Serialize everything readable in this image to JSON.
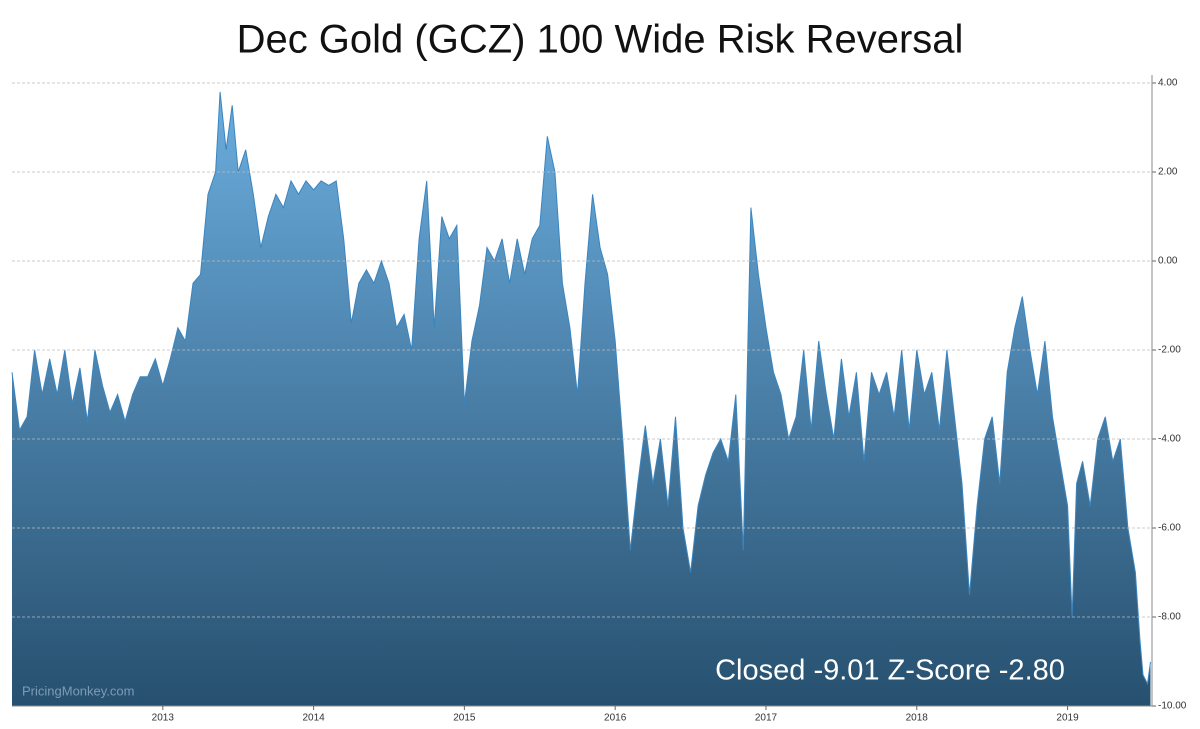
{
  "chart_data": {
    "type": "area",
    "title": "Dec Gold (GCZ) 100 Wide Risk Reversal",
    "annotation": "Closed -9.01 Z-Score -2.80",
    "watermark": "PricingMonkey.com",
    "x": [
      2012.0,
      2012.05,
      2012.1,
      2012.15,
      2012.2,
      2012.25,
      2012.3,
      2012.35,
      2012.4,
      2012.45,
      2012.5,
      2012.55,
      2012.6,
      2012.65,
      2012.7,
      2012.75,
      2012.8,
      2012.85,
      2012.9,
      2012.95,
      2013.0,
      2013.05,
      2013.1,
      2013.15,
      2013.2,
      2013.25,
      2013.3,
      2013.35,
      2013.38,
      2013.42,
      2013.46,
      2013.5,
      2013.55,
      2013.6,
      2013.65,
      2013.7,
      2013.75,
      2013.8,
      2013.85,
      2013.9,
      2013.95,
      2014.0,
      2014.05,
      2014.1,
      2014.15,
      2014.2,
      2014.25,
      2014.3,
      2014.35,
      2014.4,
      2014.45,
      2014.5,
      2014.55,
      2014.6,
      2014.65,
      2014.7,
      2014.75,
      2014.8,
      2014.85,
      2014.9,
      2014.95,
      2015.0,
      2015.05,
      2015.1,
      2015.15,
      2015.2,
      2015.25,
      2015.3,
      2015.35,
      2015.4,
      2015.45,
      2015.5,
      2015.55,
      2015.6,
      2015.65,
      2015.7,
      2015.75,
      2015.8,
      2015.85,
      2015.9,
      2015.95,
      2016.0,
      2016.05,
      2016.1,
      2016.15,
      2016.2,
      2016.25,
      2016.3,
      2016.35,
      2016.4,
      2016.45,
      2016.5,
      2016.55,
      2016.6,
      2016.65,
      2016.7,
      2016.75,
      2016.8,
      2016.85,
      2016.9,
      2016.95,
      2017.0,
      2017.05,
      2017.1,
      2017.15,
      2017.2,
      2017.25,
      2017.3,
      2017.35,
      2017.4,
      2017.45,
      2017.5,
      2017.55,
      2017.6,
      2017.65,
      2017.7,
      2017.75,
      2017.8,
      2017.85,
      2017.9,
      2017.95,
      2018.0,
      2018.05,
      2018.1,
      2018.15,
      2018.2,
      2018.25,
      2018.3,
      2018.35,
      2018.4,
      2018.45,
      2018.5,
      2018.55,
      2018.6,
      2018.65,
      2018.7,
      2018.75,
      2018.8,
      2018.85,
      2018.9,
      2018.95,
      2019.0,
      2019.03,
      2019.06,
      2019.1,
      2019.15,
      2019.2,
      2019.25,
      2019.3,
      2019.35,
      2019.4,
      2019.45,
      2019.48,
      2019.5,
      2019.53,
      2019.55
    ],
    "values": [
      -2.5,
      -3.8,
      -3.5,
      -2.0,
      -3.0,
      -2.2,
      -3.0,
      -2.0,
      -3.2,
      -2.4,
      -3.6,
      -2.0,
      -2.8,
      -3.4,
      -3.0,
      -3.6,
      -3.0,
      -2.6,
      -2.6,
      -2.2,
      -2.8,
      -2.2,
      -1.5,
      -1.8,
      -0.5,
      -0.3,
      1.5,
      2.0,
      3.8,
      2.5,
      3.5,
      2.0,
      2.5,
      1.5,
      0.3,
      1.0,
      1.5,
      1.2,
      1.8,
      1.5,
      1.8,
      1.6,
      1.8,
      1.7,
      1.8,
      0.5,
      -1.4,
      -0.5,
      -0.2,
      -0.5,
      0.0,
      -0.5,
      -1.5,
      -1.2,
      -2.0,
      0.5,
      1.8,
      -1.5,
      1.0,
      0.5,
      0.8,
      -3.2,
      -1.8,
      -1.0,
      0.3,
      0.0,
      0.5,
      -0.5,
      0.5,
      -0.3,
      0.5,
      0.8,
      2.8,
      2.0,
      -0.5,
      -1.5,
      -3.0,
      -0.5,
      1.5,
      0.3,
      -0.3,
      -1.8,
      -4.0,
      -6.5,
      -5.0,
      -3.7,
      -5.0,
      -4.0,
      -5.5,
      -3.5,
      -6.0,
      -7.0,
      -5.5,
      -4.8,
      -4.3,
      -4.0,
      -4.5,
      -3.0,
      -6.5,
      1.2,
      -0.3,
      -1.5,
      -2.5,
      -3.0,
      -4.0,
      -3.5,
      -2.0,
      -3.8,
      -1.8,
      -3.0,
      -4.0,
      -2.2,
      -3.5,
      -2.5,
      -4.5,
      -2.5,
      -3.0,
      -2.5,
      -3.5,
      -2.0,
      -3.8,
      -2.0,
      -3.0,
      -2.5,
      -3.8,
      -2.0,
      -3.5,
      -5.0,
      -7.5,
      -5.5,
      -4.0,
      -3.5,
      -5.0,
      -2.5,
      -1.5,
      -0.8,
      -2.0,
      -3.0,
      -1.8,
      -3.5,
      -4.5,
      -5.5,
      -8.0,
      -5.0,
      -4.5,
      -5.5,
      -4.0,
      -3.5,
      -4.5,
      -4.0,
      -6.0,
      -7.0,
      -8.5,
      -9.3,
      -9.5,
      -9.01
    ],
    "gradient": [
      "#6badde",
      "#27506f"
    ],
    "line_color": "#3a85c0",
    "xlim": [
      2012.0,
      2019.56
    ],
    "xticks": [
      2013,
      2014,
      2015,
      2016,
      2017,
      2018,
      2019
    ],
    "ylim": [
      -10,
      4
    ],
    "yticks": [
      {
        "value": 4,
        "label": "4.00"
      },
      {
        "value": 2,
        "label": "2.00"
      },
      {
        "value": 0,
        "label": "0.00"
      },
      {
        "value": -2,
        "label": "-2.00"
      },
      {
        "value": -4,
        "label": "-4.00"
      },
      {
        "value": -6,
        "label": "-6.00"
      },
      {
        "value": -8,
        "label": "-8.00"
      },
      {
        "value": -10,
        "label": "-10.00"
      }
    ],
    "grid": true
  }
}
